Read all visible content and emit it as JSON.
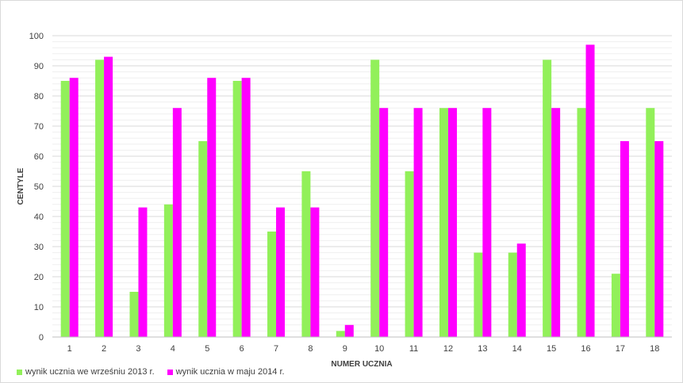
{
  "chart_data": {
    "type": "bar",
    "title": "",
    "xlabel": "NUMER UCZNIA",
    "ylabel": "CENTYLE",
    "ylim": [
      0,
      100
    ],
    "yticks": [
      0,
      10,
      20,
      30,
      40,
      50,
      60,
      70,
      80,
      90,
      100
    ],
    "grid": true,
    "legend_position": "bottom-left",
    "categories": [
      "1",
      "2",
      "3",
      "4",
      "5",
      "6",
      "7",
      "8",
      "9",
      "10",
      "11",
      "12",
      "13",
      "14",
      "15",
      "16",
      "17",
      "18"
    ],
    "series": [
      {
        "name": "wynik ucznia we wrześniu 2013 r.",
        "color": "#92f05a",
        "values": [
          85,
          92,
          15,
          44,
          65,
          85,
          35,
          55,
          2,
          92,
          55,
          76,
          28,
          28,
          92,
          76,
          21,
          76
        ]
      },
      {
        "name": "wynik ucznia w maju 2014 r.",
        "color": "#ff00ff",
        "values": [
          86,
          93,
          43,
          76,
          86,
          86,
          43,
          43,
          4,
          76,
          76,
          76,
          76,
          31,
          76,
          97,
          65,
          65
        ]
      }
    ]
  }
}
